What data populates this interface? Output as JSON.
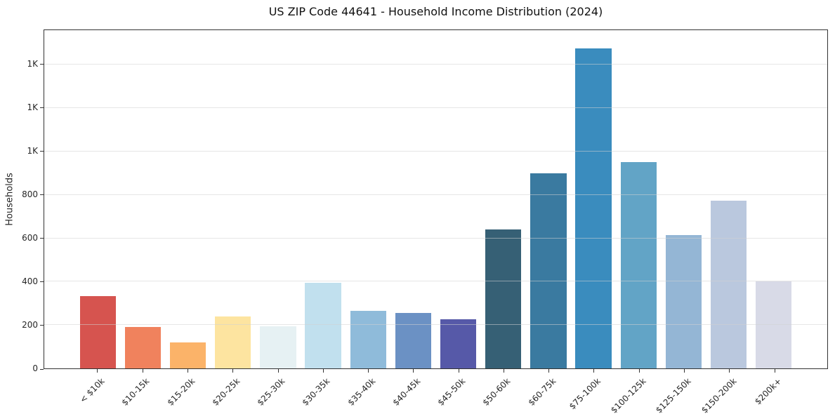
{
  "chart_data": {
    "type": "bar",
    "title": "US ZIP Code 44641 - Household Income Distribution (2024)",
    "xlabel": "",
    "ylabel": "Households",
    "categories": [
      "< $10k",
      "$10-15k",
      "$15-20k",
      "$20-25k",
      "$25-30k",
      "$30-35k",
      "$35-40k",
      "$40-45k",
      "$45-50k",
      "$50-60k",
      "$60-75k",
      "$75-100k",
      "$100-125k",
      "$125-150k",
      "$150-200k",
      "$200k+"
    ],
    "values": [
      335,
      190,
      120,
      240,
      195,
      395,
      265,
      255,
      225,
      640,
      900,
      1475,
      950,
      615,
      775,
      400
    ],
    "bar_colors": [
      "#d6544f",
      "#f0825d",
      "#fbb369",
      "#fde4a0",
      "#e6f1f3",
      "#c1e0ee",
      "#8fbbda",
      "#6b91c4",
      "#5659a8",
      "#366075",
      "#3a7aa0",
      "#3a8cbe",
      "#62a4c6",
      "#94b6d5",
      "#bac8de",
      "#d8dae7"
    ],
    "ylim": [
      0,
      1560
    ],
    "ytick_values": [
      0,
      200,
      400,
      600,
      800,
      1000,
      1200,
      1400
    ],
    "ytick_labels": [
      "0",
      "200",
      "400",
      "600",
      "800",
      "1K",
      "1K",
      "1K"
    ],
    "grid": "horizontal",
    "gridline_color": "#ececec",
    "legend": "none",
    "background_color": "#ffffff"
  }
}
